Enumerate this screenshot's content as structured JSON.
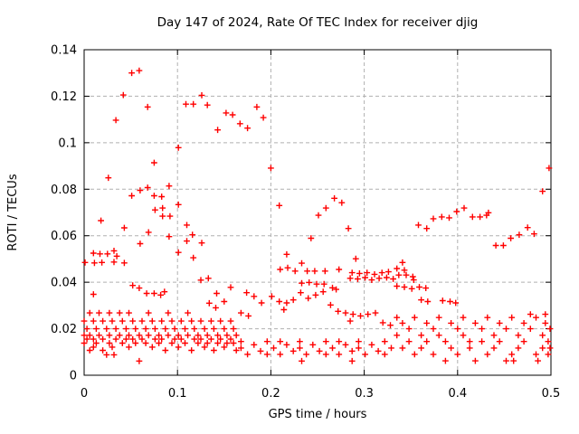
{
  "chart_data": {
    "type": "scatter",
    "title": "Day 147 of 2024, Rate Of TEC Index for receiver djig",
    "xlabel": "GPS time / hours",
    "ylabel": "ROTI / TECUs",
    "xlim": [
      0,
      0.5
    ],
    "ylim": [
      0,
      0.14
    ],
    "xticks": [
      {
        "v": 0,
        "label": "0"
      },
      {
        "v": 0.1,
        "label": "0.1"
      },
      {
        "v": 0.2,
        "label": "0.2"
      },
      {
        "v": 0.3,
        "label": "0.3"
      },
      {
        "v": 0.4,
        "label": "0.4"
      },
      {
        "v": 0.5,
        "label": "0.5"
      }
    ],
    "yticks": [
      {
        "v": 0,
        "label": "0"
      },
      {
        "v": 0.02,
        "label": "0.02"
      },
      {
        "v": 0.04,
        "label": "0.04"
      },
      {
        "v": 0.06,
        "label": "0.06"
      },
      {
        "v": 0.08,
        "label": "0.08"
      },
      {
        "v": 0.1,
        "label": "0.1"
      },
      {
        "v": 0.12,
        "label": "0.12"
      },
      {
        "v": 0.14,
        "label": "0.14"
      }
    ],
    "grid": true,
    "legend": "none",
    "marker": "plus",
    "marker_color": "#ff0000",
    "grid_color": "#b0b0b0",
    "frame_color": "#000000",
    "points": [
      [
        0.042,
        0.1205
      ],
      [
        0.051,
        0.13
      ],
      [
        0.059,
        0.131
      ],
      [
        0.034,
        0.1097
      ],
      [
        0.068,
        0.1154
      ],
      [
        0.109,
        0.1166
      ],
      [
        0.117,
        0.1166
      ],
      [
        0.126,
        0.1204
      ],
      [
        0.132,
        0.1162
      ],
      [
        0.152,
        0.1128
      ],
      [
        0.159,
        0.112
      ],
      [
        0.143,
        0.1055
      ],
      [
        0.167,
        0.1082
      ],
      [
        0.175,
        0.1063
      ],
      [
        0.185,
        0.1154
      ],
      [
        0.192,
        0.1108
      ],
      [
        0.101,
        0.0979
      ],
      [
        0.2,
        0.0891
      ],
      [
        0.075,
        0.0914
      ],
      [
        0.498,
        0.0891
      ],
      [
        0.026,
        0.0849
      ],
      [
        0.491,
        0.0791
      ],
      [
        0.06,
        0.0795
      ],
      [
        0.068,
        0.0807
      ],
      [
        0.051,
        0.0772
      ],
      [
        0.075,
        0.0772
      ],
      [
        0.083,
        0.0768
      ],
      [
        0.091,
        0.0814
      ],
      [
        0.101,
        0.0734
      ],
      [
        0.076,
        0.0711
      ],
      [
        0.084,
        0.0719
      ],
      [
        0.084,
        0.0684
      ],
      [
        0.092,
        0.0684
      ],
      [
        0.018,
        0.0665
      ],
      [
        0.043,
        0.0634
      ],
      [
        0.11,
        0.0646
      ],
      [
        0.069,
        0.0615
      ],
      [
        0.091,
        0.0596
      ],
      [
        0.116,
        0.0604
      ],
      [
        0.11,
        0.0577
      ],
      [
        0.126,
        0.0569
      ],
      [
        0.06,
        0.0566
      ],
      [
        0.101,
        0.0528
      ],
      [
        0.117,
        0.0505
      ],
      [
        0.01,
        0.0525
      ],
      [
        0.017,
        0.0522
      ],
      [
        0.025,
        0.0522
      ],
      [
        0.032,
        0.0535
      ],
      [
        0.035,
        0.0512
      ],
      [
        0.001,
        0.0485
      ],
      [
        0.011,
        0.0483
      ],
      [
        0.019,
        0.0485
      ],
      [
        0.032,
        0.0487
      ],
      [
        0.043,
        0.0483
      ],
      [
        0.209,
        0.073
      ],
      [
        0.268,
        0.0761
      ],
      [
        0.276,
        0.0742
      ],
      [
        0.259,
        0.0719
      ],
      [
        0.251,
        0.0688
      ],
      [
        0.283,
        0.0631
      ],
      [
        0.243,
        0.0589
      ],
      [
        0.217,
        0.052
      ],
      [
        0.291,
        0.0501
      ],
      [
        0.233,
        0.0482
      ],
      [
        0.358,
        0.0646
      ],
      [
        0.367,
        0.0631
      ],
      [
        0.374,
        0.0673
      ],
      [
        0.383,
        0.0681
      ],
      [
        0.391,
        0.0677
      ],
      [
        0.399,
        0.0704
      ],
      [
        0.407,
        0.0719
      ],
      [
        0.416,
        0.0681
      ],
      [
        0.424,
        0.0681
      ],
      [
        0.431,
        0.0688
      ],
      [
        0.433,
        0.0699
      ],
      [
        0.441,
        0.0558
      ],
      [
        0.449,
        0.0558
      ],
      [
        0.457,
        0.0589
      ],
      [
        0.466,
        0.0604
      ],
      [
        0.475,
        0.0635
      ],
      [
        0.482,
        0.0608
      ],
      [
        0.341,
        0.0485
      ],
      [
        0.052,
        0.0386
      ],
      [
        0.059,
        0.0375
      ],
      [
        0.01,
        0.0348
      ],
      [
        0.067,
        0.0352
      ],
      [
        0.075,
        0.0352
      ],
      [
        0.082,
        0.0345
      ],
      [
        0.086,
        0.0359
      ],
      [
        0.125,
        0.0409
      ],
      [
        0.133,
        0.0417
      ],
      [
        0.142,
        0.0352
      ],
      [
        0.134,
        0.031
      ],
      [
        0.15,
        0.0317
      ],
      [
        0.141,
        0.029
      ],
      [
        0.157,
        0.0378
      ],
      [
        0,
        0.0233
      ],
      [
        0,
        0.0172
      ],
      [
        0,
        0.0138
      ],
      [
        0.003,
        0.02
      ],
      [
        0.003,
        0.0155
      ],
      [
        0.006,
        0.0268
      ],
      [
        0.006,
        0.0172
      ],
      [
        0.006,
        0.0107
      ],
      [
        0.01,
        0.0233
      ],
      [
        0.01,
        0.0155
      ],
      [
        0.01,
        0.0121
      ],
      [
        0.013,
        0.02
      ],
      [
        0.013,
        0.0138
      ],
      [
        0.016,
        0.0268
      ],
      [
        0.016,
        0.0172
      ],
      [
        0.02,
        0.0233
      ],
      [
        0.02,
        0.0155
      ],
      [
        0.02,
        0.0107
      ],
      [
        0.024,
        0.02
      ],
      [
        0.024,
        0.0088
      ],
      [
        0.027,
        0.0268
      ],
      [
        0.027,
        0.0172
      ],
      [
        0.027,
        0.0138
      ],
      [
        0.03,
        0.0233
      ],
      [
        0.03,
        0.0121
      ],
      [
        0.032,
        0.0088
      ],
      [
        0.034,
        0.02
      ],
      [
        0.034,
        0.0155
      ],
      [
        0.038,
        0.0268
      ],
      [
        0.038,
        0.0172
      ],
      [
        0.041,
        0.0233
      ],
      [
        0.041,
        0.0138
      ],
      [
        0.045,
        0.02
      ],
      [
        0.045,
        0.0155
      ],
      [
        0.048,
        0.0268
      ],
      [
        0.048,
        0.0172
      ],
      [
        0.048,
        0.0121
      ],
      [
        0.052,
        0.0233
      ],
      [
        0.052,
        0.0155
      ],
      [
        0.055,
        0.02
      ],
      [
        0.055,
        0.0138
      ],
      [
        0.059,
        0.0061
      ],
      [
        0.059,
        0.0172
      ],
      [
        0.062,
        0.0233
      ],
      [
        0.062,
        0.0155
      ],
      [
        0.066,
        0.02
      ],
      [
        0.066,
        0.0138
      ],
      [
        0.069,
        0.0268
      ],
      [
        0.069,
        0.0172
      ],
      [
        0.073,
        0.0233
      ],
      [
        0.073,
        0.0121
      ],
      [
        0.076,
        0.02
      ],
      [
        0.076,
        0.0155
      ],
      [
        0.08,
        0.0172
      ],
      [
        0.08,
        0.0138
      ],
      [
        0.083,
        0.0233
      ],
      [
        0.083,
        0.0155
      ],
      [
        0.087,
        0.02
      ],
      [
        0.087,
        0.0107
      ],
      [
        0.09,
        0.0268
      ],
      [
        0.09,
        0.0172
      ],
      [
        0.094,
        0.0233
      ],
      [
        0.094,
        0.0138
      ],
      [
        0.097,
        0.02
      ],
      [
        0.097,
        0.0155
      ],
      [
        0.101,
        0.0172
      ],
      [
        0.101,
        0.0121
      ],
      [
        0.104,
        0.0233
      ],
      [
        0.104,
        0.0155
      ],
      [
        0.108,
        0.02
      ],
      [
        0.108,
        0.0138
      ],
      [
        0.111,
        0.0268
      ],
      [
        0.111,
        0.0172
      ],
      [
        0.115,
        0.0233
      ],
      [
        0.115,
        0.0107
      ],
      [
        0.118,
        0.02
      ],
      [
        0.118,
        0.0155
      ],
      [
        0.122,
        0.0172
      ],
      [
        0.122,
        0.0138
      ],
      [
        0.125,
        0.0233
      ],
      [
        0.125,
        0.0155
      ],
      [
        0.129,
        0.02
      ],
      [
        0.129,
        0.0121
      ],
      [
        0.132,
        0.0172
      ],
      [
        0.132,
        0.0138
      ],
      [
        0.136,
        0.0233
      ],
      [
        0.136,
        0.0155
      ],
      [
        0.139,
        0.02
      ],
      [
        0.139,
        0.0107
      ],
      [
        0.143,
        0.0172
      ],
      [
        0.143,
        0.0138
      ],
      [
        0.146,
        0.0233
      ],
      [
        0.146,
        0.0155
      ],
      [
        0.15,
        0.02
      ],
      [
        0.15,
        0.0121
      ],
      [
        0.153,
        0.0172
      ],
      [
        0.153,
        0.0138
      ],
      [
        0.157,
        0.0233
      ],
      [
        0.157,
        0.0155
      ],
      [
        0.16,
        0.02
      ],
      [
        0.16,
        0.0138
      ],
      [
        0.163,
        0.0172
      ],
      [
        0.163,
        0.0107
      ],
      [
        0.21,
        0.0455
      ],
      [
        0.218,
        0.0462
      ],
      [
        0.226,
        0.0448
      ],
      [
        0.239,
        0.0448
      ],
      [
        0.247,
        0.0448
      ],
      [
        0.258,
        0.0448
      ],
      [
        0.273,
        0.0455
      ],
      [
        0.287,
        0.0441
      ],
      [
        0.295,
        0.0438
      ],
      [
        0.303,
        0.0441
      ],
      [
        0.311,
        0.0434
      ],
      [
        0.319,
        0.0441
      ],
      [
        0.326,
        0.0445
      ],
      [
        0.233,
        0.0396
      ],
      [
        0.241,
        0.0399
      ],
      [
        0.249,
        0.0392
      ],
      [
        0.257,
        0.0392
      ],
      [
        0.266,
        0.0376
      ],
      [
        0.27,
        0.0369
      ],
      [
        0.285,
        0.0417
      ],
      [
        0.293,
        0.0414
      ],
      [
        0.301,
        0.042
      ],
      [
        0.308,
        0.041
      ],
      [
        0.316,
        0.0417
      ],
      [
        0.324,
        0.042
      ],
      [
        0.331,
        0.0414
      ],
      [
        0.174,
        0.0355
      ],
      [
        0.182,
        0.0339
      ],
      [
        0.19,
        0.0311
      ],
      [
        0.201,
        0.0339
      ],
      [
        0.209,
        0.0317
      ],
      [
        0.217,
        0.0311
      ],
      [
        0.214,
        0.0282
      ],
      [
        0.224,
        0.0324
      ],
      [
        0.232,
        0.0355
      ],
      [
        0.24,
        0.0331
      ],
      [
        0.248,
        0.0345
      ],
      [
        0.256,
        0.0359
      ],
      [
        0.264,
        0.0302
      ],
      [
        0.272,
        0.0275
      ],
      [
        0.28,
        0.0268
      ],
      [
        0.288,
        0.0262
      ],
      [
        0.296,
        0.0255
      ],
      [
        0.304,
        0.0262
      ],
      [
        0.312,
        0.0268
      ],
      [
        0.32,
        0.0226
      ],
      [
        0.328,
        0.0215
      ],
      [
        0.285,
        0.0233
      ],
      [
        0.176,
        0.0255
      ],
      [
        0.168,
        0.0268
      ],
      [
        0.168,
        0.0145
      ],
      [
        0.168,
        0.0117
      ],
      [
        0.175,
        0.009
      ],
      [
        0.182,
        0.0131
      ],
      [
        0.189,
        0.0104
      ],
      [
        0.196,
        0.0145
      ],
      [
        0.196,
        0.009
      ],
      [
        0.203,
        0.0117
      ],
      [
        0.21,
        0.0145
      ],
      [
        0.21,
        0.009
      ],
      [
        0.217,
        0.0131
      ],
      [
        0.224,
        0.0104
      ],
      [
        0.231,
        0.0145
      ],
      [
        0.231,
        0.0117
      ],
      [
        0.238,
        0.009
      ],
      [
        0.245,
        0.0131
      ],
      [
        0.252,
        0.0104
      ],
      [
        0.259,
        0.0145
      ],
      [
        0.259,
        0.009
      ],
      [
        0.266,
        0.0117
      ],
      [
        0.273,
        0.0145
      ],
      [
        0.273,
        0.009
      ],
      [
        0.28,
        0.0131
      ],
      [
        0.287,
        0.0104
      ],
      [
        0.294,
        0.0145
      ],
      [
        0.294,
        0.0117
      ],
      [
        0.301,
        0.009
      ],
      [
        0.308,
        0.0131
      ],
      [
        0.315,
        0.0104
      ],
      [
        0.322,
        0.0145
      ],
      [
        0.322,
        0.009
      ],
      [
        0.329,
        0.0117
      ],
      [
        0.233,
        0.0061
      ],
      [
        0.287,
        0.0061
      ],
      [
        0.335,
        0.0459
      ],
      [
        0.343,
        0.0452
      ],
      [
        0.337,
        0.0431
      ],
      [
        0.345,
        0.0431
      ],
      [
        0.352,
        0.0424
      ],
      [
        0.353,
        0.041
      ],
      [
        0.335,
        0.0383
      ],
      [
        0.343,
        0.0379
      ],
      [
        0.351,
        0.0372
      ],
      [
        0.359,
        0.0379
      ],
      [
        0.366,
        0.0375
      ],
      [
        0.361,
        0.0324
      ],
      [
        0.368,
        0.0317
      ],
      [
        0.384,
        0.0321
      ],
      [
        0.392,
        0.0317
      ],
      [
        0.398,
        0.0311
      ],
      [
        0.335,
        0.0248
      ],
      [
        0.335,
        0.0172
      ],
      [
        0.341,
        0.0224
      ],
      [
        0.341,
        0.0117
      ],
      [
        0.348,
        0.02
      ],
      [
        0.348,
        0.0145
      ],
      [
        0.354,
        0.0248
      ],
      [
        0.354,
        0.009
      ],
      [
        0.361,
        0.0172
      ],
      [
        0.361,
        0.0117
      ],
      [
        0.367,
        0.0224
      ],
      [
        0.367,
        0.0145
      ],
      [
        0.374,
        0.02
      ],
      [
        0.374,
        0.009
      ],
      [
        0.38,
        0.0248
      ],
      [
        0.38,
        0.0172
      ],
      [
        0.387,
        0.0145
      ],
      [
        0.387,
        0.0062
      ],
      [
        0.393,
        0.0224
      ],
      [
        0.393,
        0.0117
      ],
      [
        0.4,
        0.02
      ],
      [
        0.4,
        0.009
      ],
      [
        0.406,
        0.0248
      ],
      [
        0.406,
        0.0172
      ],
      [
        0.413,
        0.0145
      ],
      [
        0.413,
        0.0117
      ],
      [
        0.419,
        0.0224
      ],
      [
        0.419,
        0.0062
      ],
      [
        0.426,
        0.02
      ],
      [
        0.426,
        0.0145
      ],
      [
        0.432,
        0.0248
      ],
      [
        0.432,
        0.009
      ],
      [
        0.439,
        0.0172
      ],
      [
        0.439,
        0.0117
      ],
      [
        0.445,
        0.0224
      ],
      [
        0.445,
        0.0145
      ],
      [
        0.452,
        0.02
      ],
      [
        0.452,
        0.0062
      ],
      [
        0.458,
        0.0248
      ],
      [
        0.458,
        0.009
      ],
      [
        0.465,
        0.0172
      ],
      [
        0.465,
        0.0117
      ],
      [
        0.471,
        0.0224
      ],
      [
        0.471,
        0.0145
      ],
      [
        0.478,
        0.0262
      ],
      [
        0.478,
        0.02
      ],
      [
        0.484,
        0.0248
      ],
      [
        0.484,
        0.009
      ],
      [
        0.491,
        0.0172
      ],
      [
        0.491,
        0.0117
      ],
      [
        0.494,
        0.0262
      ],
      [
        0.494,
        0.0224
      ],
      [
        0.497,
        0.0145
      ],
      [
        0.497,
        0.009
      ],
      [
        0.499,
        0.02
      ],
      [
        0.499,
        0.0117
      ],
      [
        0.486,
        0.0062
      ],
      [
        0.46,
        0.0062
      ]
    ]
  }
}
